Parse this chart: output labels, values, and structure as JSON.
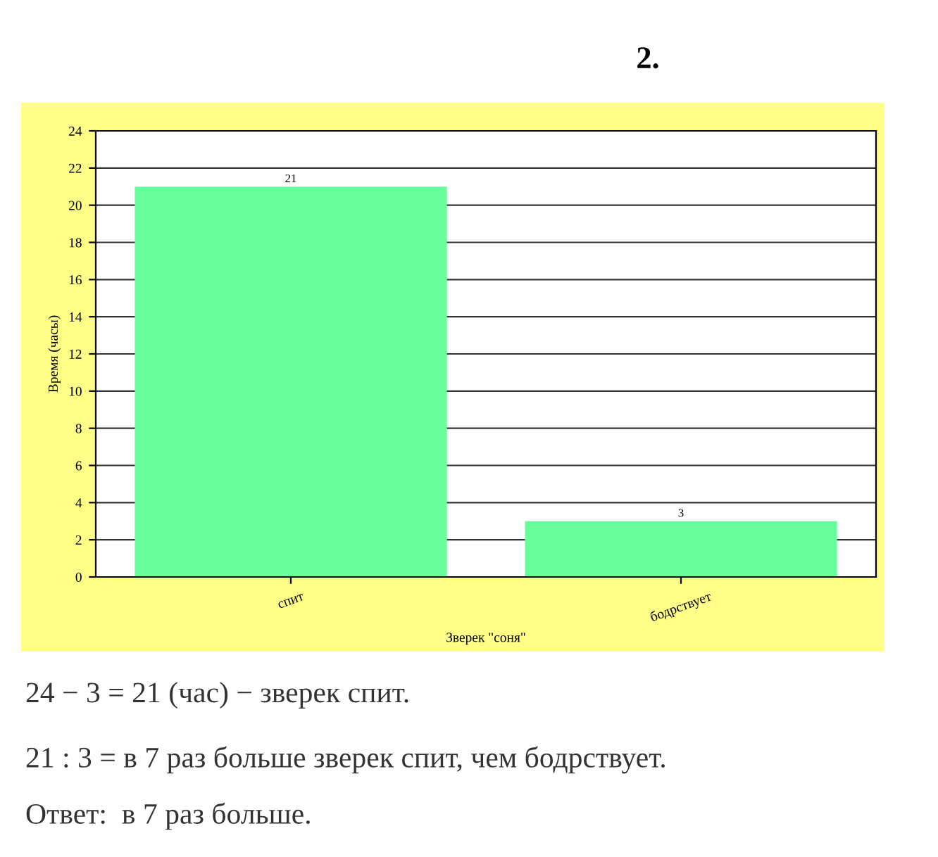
{
  "chart_data": {
    "type": "bar",
    "title": "2.",
    "xlabel": "Зверек \"соня\"",
    "ylabel": "Время (часы)",
    "categories": [
      "спит",
      "бодрствует"
    ],
    "values": [
      21,
      3
    ],
    "color": "#66ff99",
    "ylim": [
      0,
      24
    ],
    "yticks": [
      0,
      2,
      4,
      6,
      8,
      10,
      12,
      14,
      16,
      18,
      20,
      22,
      24
    ],
    "grid": "y",
    "data_labels": true,
    "annotations": [
      "24 − 3 = 21 (час) − зверек спит.",
      "21 : 3 = в 7 раз больше зверек спит, чем бодрствует.",
      "Ответ:  в 7 раз больше."
    ]
  }
}
